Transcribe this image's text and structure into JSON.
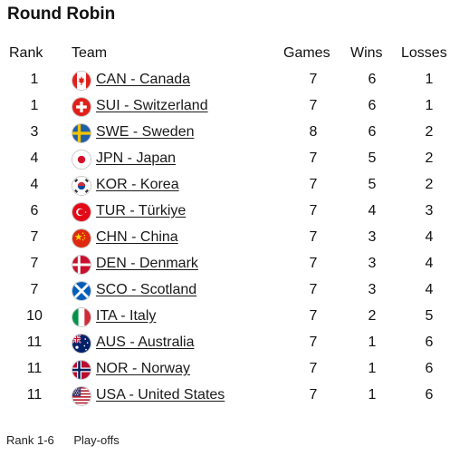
{
  "title": "Round Robin",
  "headers": {
    "rank": "Rank",
    "team": "Team",
    "games": "Games",
    "wins": "Wins",
    "losses": "Losses"
  },
  "rows": [
    {
      "rank": "1",
      "team": "CAN - Canada",
      "games": "7",
      "wins": "6",
      "losses": "1",
      "flag": "canada-flag-icon"
    },
    {
      "rank": "1",
      "team": "SUI - Switzerland",
      "games": "7",
      "wins": "6",
      "losses": "1",
      "flag": "switzerland-flag-icon"
    },
    {
      "rank": "3",
      "team": "SWE - Sweden",
      "games": "8",
      "wins": "6",
      "losses": "2",
      "flag": "sweden-flag-icon"
    },
    {
      "rank": "4",
      "team": "JPN - Japan",
      "games": "7",
      "wins": "5",
      "losses": "2",
      "flag": "japan-flag-icon"
    },
    {
      "rank": "4",
      "team": "KOR - Korea",
      "games": "7",
      "wins": "5",
      "losses": "2",
      "flag": "korea-flag-icon"
    },
    {
      "rank": "6",
      "team": "TUR - Türkiye",
      "games": "7",
      "wins": "4",
      "losses": "3",
      "flag": "turkiye-flag-icon"
    },
    {
      "rank": "7",
      "team": "CHN - China",
      "games": "7",
      "wins": "3",
      "losses": "4",
      "flag": "china-flag-icon"
    },
    {
      "rank": "7",
      "team": "DEN - Denmark",
      "games": "7",
      "wins": "3",
      "losses": "4",
      "flag": "denmark-flag-icon"
    },
    {
      "rank": "7",
      "team": "SCO - Scotland",
      "games": "7",
      "wins": "3",
      "losses": "4",
      "flag": "scotland-flag-icon"
    },
    {
      "rank": "10",
      "team": "ITA - Italy",
      "games": "7",
      "wins": "2",
      "losses": "5",
      "flag": "italy-flag-icon"
    },
    {
      "rank": "11",
      "team": "AUS - Australia",
      "games": "7",
      "wins": "1",
      "losses": "6",
      "flag": "australia-flag-icon"
    },
    {
      "rank": "11",
      "team": "NOR - Norway",
      "games": "7",
      "wins": "1",
      "losses": "6",
      "flag": "norway-flag-icon"
    },
    {
      "rank": "11",
      "team": "USA - United States",
      "games": "7",
      "wins": "1",
      "losses": "6",
      "flag": "usa-flag-icon"
    }
  ],
  "legend": {
    "rank_range": "Rank 1-6",
    "label": "Play-offs"
  }
}
